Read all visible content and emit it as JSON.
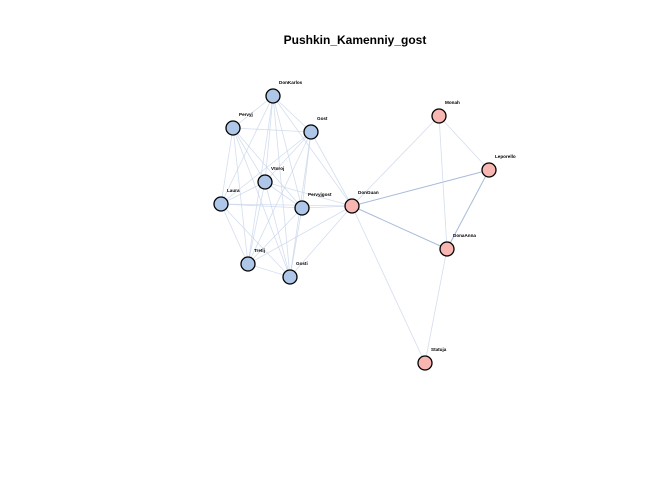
{
  "title": "Pushkin_Kamenniy_gost",
  "colors": {
    "group_1": "#aec7e8",
    "group_2": "#f7b6b2",
    "node_stroke": "#000000",
    "edge": "#c6d3ea",
    "edge_strong": "#9fb3d6"
  },
  "nodes": [
    {
      "id": "DonKarlos",
      "label": "DonKarlos",
      "group": 1
    },
    {
      "id": "Pervyj",
      "label": "Pervyj",
      "group": 1
    },
    {
      "id": "Gost",
      "label": "Gost",
      "group": 1
    },
    {
      "id": "Vtoroj",
      "label": "Vtoroj",
      "group": 1
    },
    {
      "id": "Laura",
      "label": "Laura",
      "group": 1
    },
    {
      "id": "Pervyjgost",
      "label": "Pervyjgost",
      "group": 1
    },
    {
      "id": "Tretij",
      "label": "Tretij",
      "group": 1
    },
    {
      "id": "Gosti",
      "label": "Gosti",
      "group": 1
    },
    {
      "id": "DonGuan",
      "label": "DonGuan",
      "group": 2
    },
    {
      "id": "Monah",
      "label": "Monah",
      "group": 2
    },
    {
      "id": "Leporello",
      "label": "Leporello",
      "group": 2
    },
    {
      "id": "DonaAnna",
      "label": "DonaAnna",
      "group": 2
    },
    {
      "id": "Statuja",
      "label": "Statuja",
      "group": 2
    }
  ],
  "edges": [
    {
      "source": "DonKarlos",
      "target": "Pervyj"
    },
    {
      "source": "DonKarlos",
      "target": "Gost"
    },
    {
      "source": "DonKarlos",
      "target": "Vtoroj"
    },
    {
      "source": "DonKarlos",
      "target": "Laura"
    },
    {
      "source": "DonKarlos",
      "target": "Pervyjgost"
    },
    {
      "source": "DonKarlos",
      "target": "Tretij"
    },
    {
      "source": "DonKarlos",
      "target": "Gosti"
    },
    {
      "source": "DonKarlos",
      "target": "DonGuan"
    },
    {
      "source": "Pervyj",
      "target": "Gost"
    },
    {
      "source": "Pervyj",
      "target": "Vtoroj"
    },
    {
      "source": "Pervyj",
      "target": "Laura"
    },
    {
      "source": "Pervyj",
      "target": "Pervyjgost"
    },
    {
      "source": "Pervyj",
      "target": "Tretij"
    },
    {
      "source": "Pervyj",
      "target": "Gosti"
    },
    {
      "source": "Gost",
      "target": "Vtoroj"
    },
    {
      "source": "Gost",
      "target": "Laura"
    },
    {
      "source": "Gost",
      "target": "Pervyjgost"
    },
    {
      "source": "Gost",
      "target": "Tretij"
    },
    {
      "source": "Gost",
      "target": "Gosti"
    },
    {
      "source": "Gost",
      "target": "DonGuan"
    },
    {
      "source": "Vtoroj",
      "target": "Laura"
    },
    {
      "source": "Vtoroj",
      "target": "Pervyjgost"
    },
    {
      "source": "Vtoroj",
      "target": "Tretij"
    },
    {
      "source": "Vtoroj",
      "target": "Gosti"
    },
    {
      "source": "Vtoroj",
      "target": "DonGuan"
    },
    {
      "source": "Laura",
      "target": "Pervyjgost"
    },
    {
      "source": "Laura",
      "target": "Tretij"
    },
    {
      "source": "Laura",
      "target": "Gosti"
    },
    {
      "source": "Laura",
      "target": "DonGuan"
    },
    {
      "source": "Pervyjgost",
      "target": "Tretij"
    },
    {
      "source": "Pervyjgost",
      "target": "Gosti"
    },
    {
      "source": "Pervyjgost",
      "target": "DonGuan"
    },
    {
      "source": "Tretij",
      "target": "Gosti"
    },
    {
      "source": "Tretij",
      "target": "DonGuan"
    },
    {
      "source": "Gosti",
      "target": "DonGuan"
    },
    {
      "source": "DonGuan",
      "target": "Monah"
    },
    {
      "source": "DonGuan",
      "target": "Leporello",
      "strong": true
    },
    {
      "source": "DonGuan",
      "target": "DonaAnna",
      "strong": true
    },
    {
      "source": "DonGuan",
      "target": "Statuja"
    },
    {
      "source": "Monah",
      "target": "Leporello"
    },
    {
      "source": "Monah",
      "target": "DonaAnna"
    },
    {
      "source": "Leporello",
      "target": "DonaAnna",
      "strong": true
    },
    {
      "source": "DonaAnna",
      "target": "Statuja"
    }
  ]
}
